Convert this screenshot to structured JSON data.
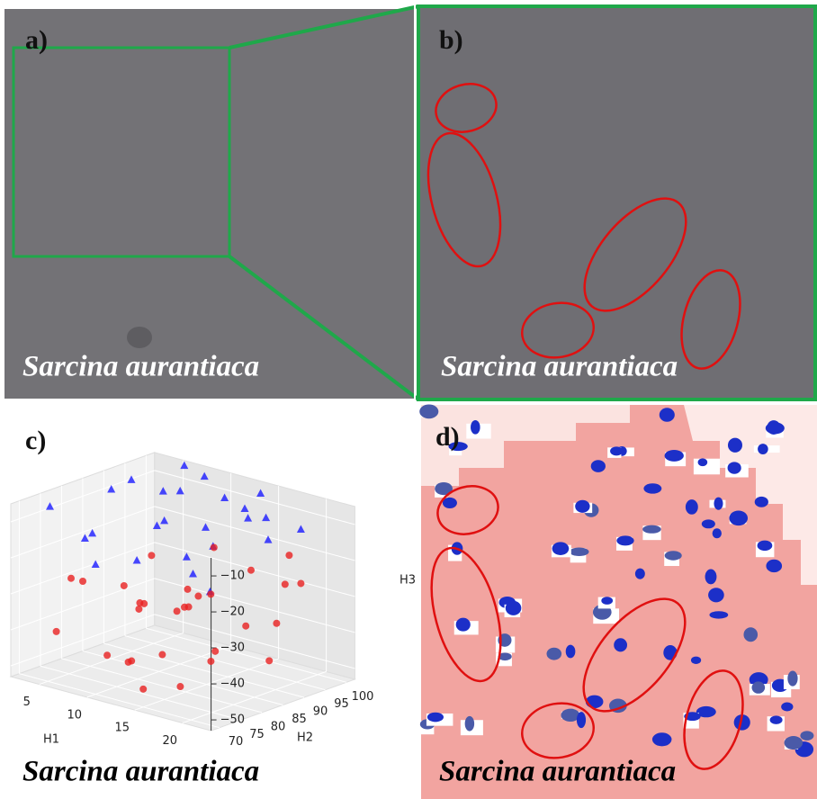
{
  "panels": [
    {
      "label": "a)",
      "caption": "Sarcina aurantiaca"
    },
    {
      "label": "b)",
      "caption": "Sarcina aurantiaca"
    },
    {
      "label": "c)",
      "caption": "Sarcina aurantiaca",
      "chart_data": {
        "type": "scatter3d",
        "xlabel": "H1",
        "ylabel": "H2",
        "zlabel": "H3",
        "xlim": [
          2,
          23
        ],
        "ylim": [
          68,
          102
        ],
        "zlim": [
          -53,
          -5
        ],
        "xticks": [
          5,
          10,
          15,
          20
        ],
        "yticks": [
          70,
          75,
          80,
          85,
          90,
          95,
          100
        ],
        "zticks": [
          {
            "value": -10,
            "label": "−10"
          },
          {
            "value": -20,
            "label": "−20"
          },
          {
            "value": -30,
            "label": "−30"
          },
          {
            "value": -40,
            "label": "−40"
          },
          {
            "value": -50,
            "label": "−50"
          }
        ],
        "grid": true,
        "series": [
          {
            "color": "#1a1aff",
            "marker": "triangle",
            "x": [
              3,
              5,
              6,
              8,
              10,
              12,
              14,
              16,
              18,
              20,
              22,
              4,
              7,
              9,
              11,
              13,
              15,
              17,
              19,
              21,
              6,
              10,
              14,
              18,
              12
            ],
            "y": [
              75,
              85,
              95,
              72,
              90,
              80,
              100,
              78,
              88,
              96,
              70,
              92,
              76,
              98,
              84,
              73,
              94,
              82,
              90,
              86,
              100,
              70,
              87,
              75,
              96
            ],
            "z": [
              -8,
              -6,
              -10,
              -12,
              -5,
              -9,
              -7,
              -14,
              -6,
              -11,
              -16,
              -7,
              -13,
              -5,
              -10,
              -15,
              -8,
              -12,
              -6,
              -9,
              -5,
              -17,
              -11,
              -16,
              -8
            ]
          },
          {
            "color": "#e82020",
            "marker": "circle",
            "x": [
              3,
              5,
              7,
              9,
              11,
              13,
              15,
              17,
              19,
              21,
              4,
              6,
              8,
              10,
              12,
              14,
              16,
              18,
              20,
              22,
              5,
              9,
              13,
              17,
              21,
              7,
              11,
              15,
              19,
              10
            ],
            "y": [
              80,
              72,
              90,
              75,
              95,
              85,
              70,
              100,
              78,
              88,
              94,
              76,
              86,
              98,
              74,
              82,
              92,
              72,
              96,
              84,
              88,
              80,
              100,
              70,
              90,
              96,
              78,
              86,
              74,
              92
            ],
            "z": [
              -30,
              -40,
              -25,
              -45,
              -35,
              -28,
              -48,
              -22,
              -38,
              -33,
              -42,
              -27,
              -36,
              -24,
              -44,
              -31,
              -39,
              -46,
              -26,
              -41,
              -34,
              -49,
              -29,
              -37,
              -23,
              -43,
              -32,
              -47,
              -21,
              -38
            ]
          }
        ]
      }
    },
    {
      "label": "d)",
      "caption": "Sarcina aurantiaca"
    }
  ]
}
